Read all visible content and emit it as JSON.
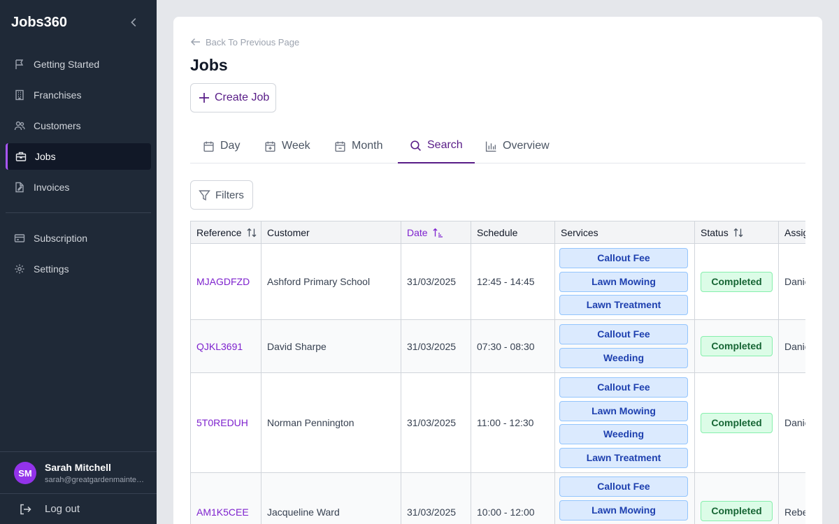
{
  "app": {
    "name": "Jobs360"
  },
  "sidebar": {
    "items": [
      {
        "label": "Getting Started",
        "icon": "flag-icon"
      },
      {
        "label": "Franchises",
        "icon": "building-icon"
      },
      {
        "label": "Customers",
        "icon": "users-icon"
      },
      {
        "label": "Jobs",
        "icon": "briefcase-icon",
        "active": true
      },
      {
        "label": "Invoices",
        "icon": "document-icon"
      },
      {
        "label": "Subscription",
        "icon": "credit-card-icon"
      },
      {
        "label": "Settings",
        "icon": "gear-icon"
      }
    ],
    "user": {
      "initials": "SM",
      "name": "Sarah Mitchell",
      "email": "sarah@greatgardenmaintenance.com"
    },
    "logout_label": "Log out"
  },
  "page": {
    "back_label": "Back To Previous Page",
    "title": "Jobs",
    "create_label": "Create Job",
    "tabs": [
      {
        "label": "Day",
        "icon": "calendar-icon"
      },
      {
        "label": "Week",
        "icon": "calendar-week-icon"
      },
      {
        "label": "Month",
        "icon": "calendar-month-icon"
      },
      {
        "label": "Search",
        "icon": "search-icon",
        "active": true
      },
      {
        "label": "Overview",
        "icon": "bar-chart-icon"
      }
    ],
    "filters_label": "Filters"
  },
  "table": {
    "columns": [
      "Reference",
      "Customer",
      "Date",
      "Schedule",
      "Services",
      "Status",
      "Assigned"
    ],
    "sorted_column": "Date",
    "rows": [
      {
        "reference": "MJAGDFZD",
        "customer": "Ashford Primary School",
        "date": "31/03/2025",
        "schedule": "12:45 - 14:45",
        "services": [
          "Callout Fee",
          "Lawn Mowing",
          "Lawn Treatment"
        ],
        "status": "Completed",
        "assigned": "Daniel"
      },
      {
        "reference": "QJKL3691",
        "customer": "David Sharpe",
        "date": "31/03/2025",
        "schedule": "07:30 - 08:30",
        "services": [
          "Callout Fee",
          "Weeding"
        ],
        "status": "Completed",
        "assigned": "Daniel"
      },
      {
        "reference": "5T0REDUH",
        "customer": "Norman Pennington",
        "date": "31/03/2025",
        "schedule": "11:00 - 12:30",
        "services": [
          "Callout Fee",
          "Lawn Mowing",
          "Weeding",
          "Lawn Treatment"
        ],
        "status": "Completed",
        "assigned": "Daniel"
      },
      {
        "reference": "AM1K5CEE",
        "customer": "Jacqueline Ward",
        "date": "31/03/2025",
        "schedule": "10:00 - 12:00",
        "services": [
          "Callout Fee",
          "Lawn Mowing"
        ],
        "status": "Completed",
        "assigned": "Rebecca"
      }
    ]
  },
  "colors": {
    "accent": "#7e22ce",
    "sidebar_bg": "#1f2937",
    "service_bg": "#dbeafe",
    "status_bg": "#dcfce7"
  }
}
